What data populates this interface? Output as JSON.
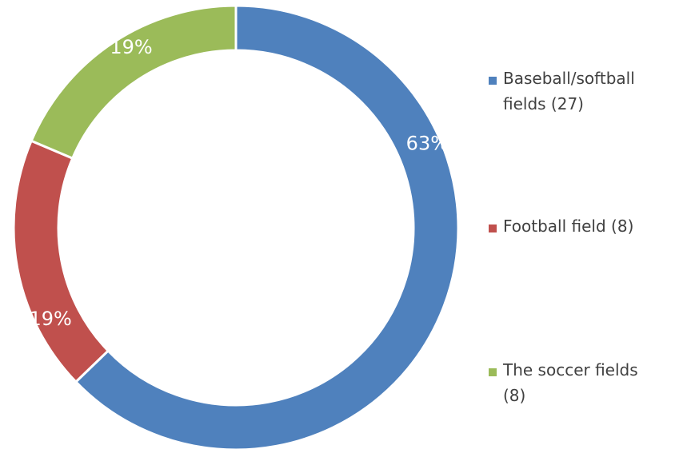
{
  "chart_data": {
    "type": "pie",
    "variant": "donut",
    "title": "",
    "legend_position": "right",
    "slices": [
      {
        "legend": [
          "Baseball/softball",
          "fields (27)"
        ],
        "count": 27,
        "value": 63,
        "label": "63%",
        "color": "#4F81BD"
      },
      {
        "legend": [
          "Football field (8)"
        ],
        "count": 8,
        "value": 19,
        "label": "19%",
        "color": "#C0504D"
      },
      {
        "legend": [
          "The soccer fields",
          "(8)"
        ],
        "count": 8,
        "value": 19,
        "label": "19%",
        "color": "#9BBB59"
      }
    ]
  }
}
